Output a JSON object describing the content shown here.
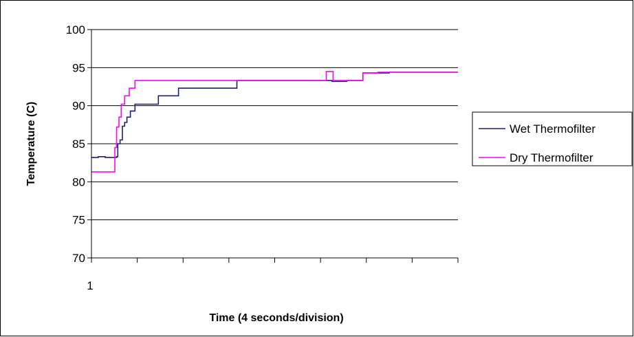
{
  "chart_data": {
    "type": "line",
    "title": "",
    "xlabel": "Time (4 seconds/division)",
    "ylabel": "Temperature (C)",
    "ylim": [
      70,
      100
    ],
    "yticks": [
      "70",
      "75",
      "80",
      "85",
      "90",
      "95",
      "100"
    ],
    "xtick_labels": [
      "1"
    ],
    "xlim": [
      0,
      16
    ],
    "grid": "horizontal",
    "legend_position": "right",
    "series": [
      {
        "name": "Wet Thermofilter",
        "color": "#1a1f6e",
        "points": [
          [
            0,
            83.2
          ],
          [
            0.3,
            83.3
          ],
          [
            0.6,
            83.2
          ],
          [
            1.1,
            83.3
          ],
          [
            1.15,
            85
          ],
          [
            1.25,
            85.5
          ],
          [
            1.35,
            87.3
          ],
          [
            1.45,
            87.8
          ],
          [
            1.55,
            88.5
          ],
          [
            1.7,
            89.3
          ],
          [
            1.9,
            90.2
          ],
          [
            2.3,
            90.2
          ],
          [
            2.6,
            90.2
          ],
          [
            2.9,
            90.2
          ],
          [
            2.92,
            91.3
          ],
          [
            3.4,
            91.3
          ],
          [
            3.7,
            91.3
          ],
          [
            3.8,
            92.3
          ],
          [
            5,
            92.3
          ],
          [
            6.3,
            92.3
          ],
          [
            6.35,
            93.3
          ],
          [
            7.5,
            93.3
          ],
          [
            8.6,
            93.3
          ],
          [
            9,
            93.3
          ],
          [
            10.3,
            93.3
          ],
          [
            10.5,
            93.2
          ],
          [
            11.1,
            93.2
          ],
          [
            11.15,
            93.3
          ],
          [
            11.8,
            93.3
          ],
          [
            11.85,
            94.3
          ],
          [
            13,
            94.4
          ],
          [
            14.2,
            94.4
          ],
          [
            15,
            94.4
          ],
          [
            16,
            94.4
          ]
        ]
      },
      {
        "name": "Dry Thermofilter",
        "color": "#ff00ff",
        "points": [
          [
            0,
            81.3
          ],
          [
            0.5,
            81.3
          ],
          [
            0.98,
            81.3
          ],
          [
            1.02,
            84.5
          ],
          [
            1.1,
            87.2
          ],
          [
            1.2,
            88.5
          ],
          [
            1.3,
            90.2
          ],
          [
            1.45,
            91.3
          ],
          [
            1.65,
            92.3
          ],
          [
            1.9,
            93.3
          ],
          [
            2.5,
            93.3
          ],
          [
            3.5,
            93.3
          ],
          [
            5,
            93.3
          ],
          [
            6.5,
            93.3
          ],
          [
            8,
            93.3
          ],
          [
            9.5,
            93.3
          ],
          [
            10.2,
            93.3
          ],
          [
            10.25,
            94.5
          ],
          [
            10.5,
            94.5
          ],
          [
            10.55,
            93.3
          ],
          [
            11.3,
            93.3
          ],
          [
            11.8,
            93.3
          ],
          [
            11.85,
            94.3
          ],
          [
            12.5,
            94.4
          ],
          [
            13.5,
            94.4
          ],
          [
            14.5,
            94.4
          ],
          [
            15.5,
            94.4
          ],
          [
            16,
            94.4
          ]
        ]
      }
    ]
  }
}
